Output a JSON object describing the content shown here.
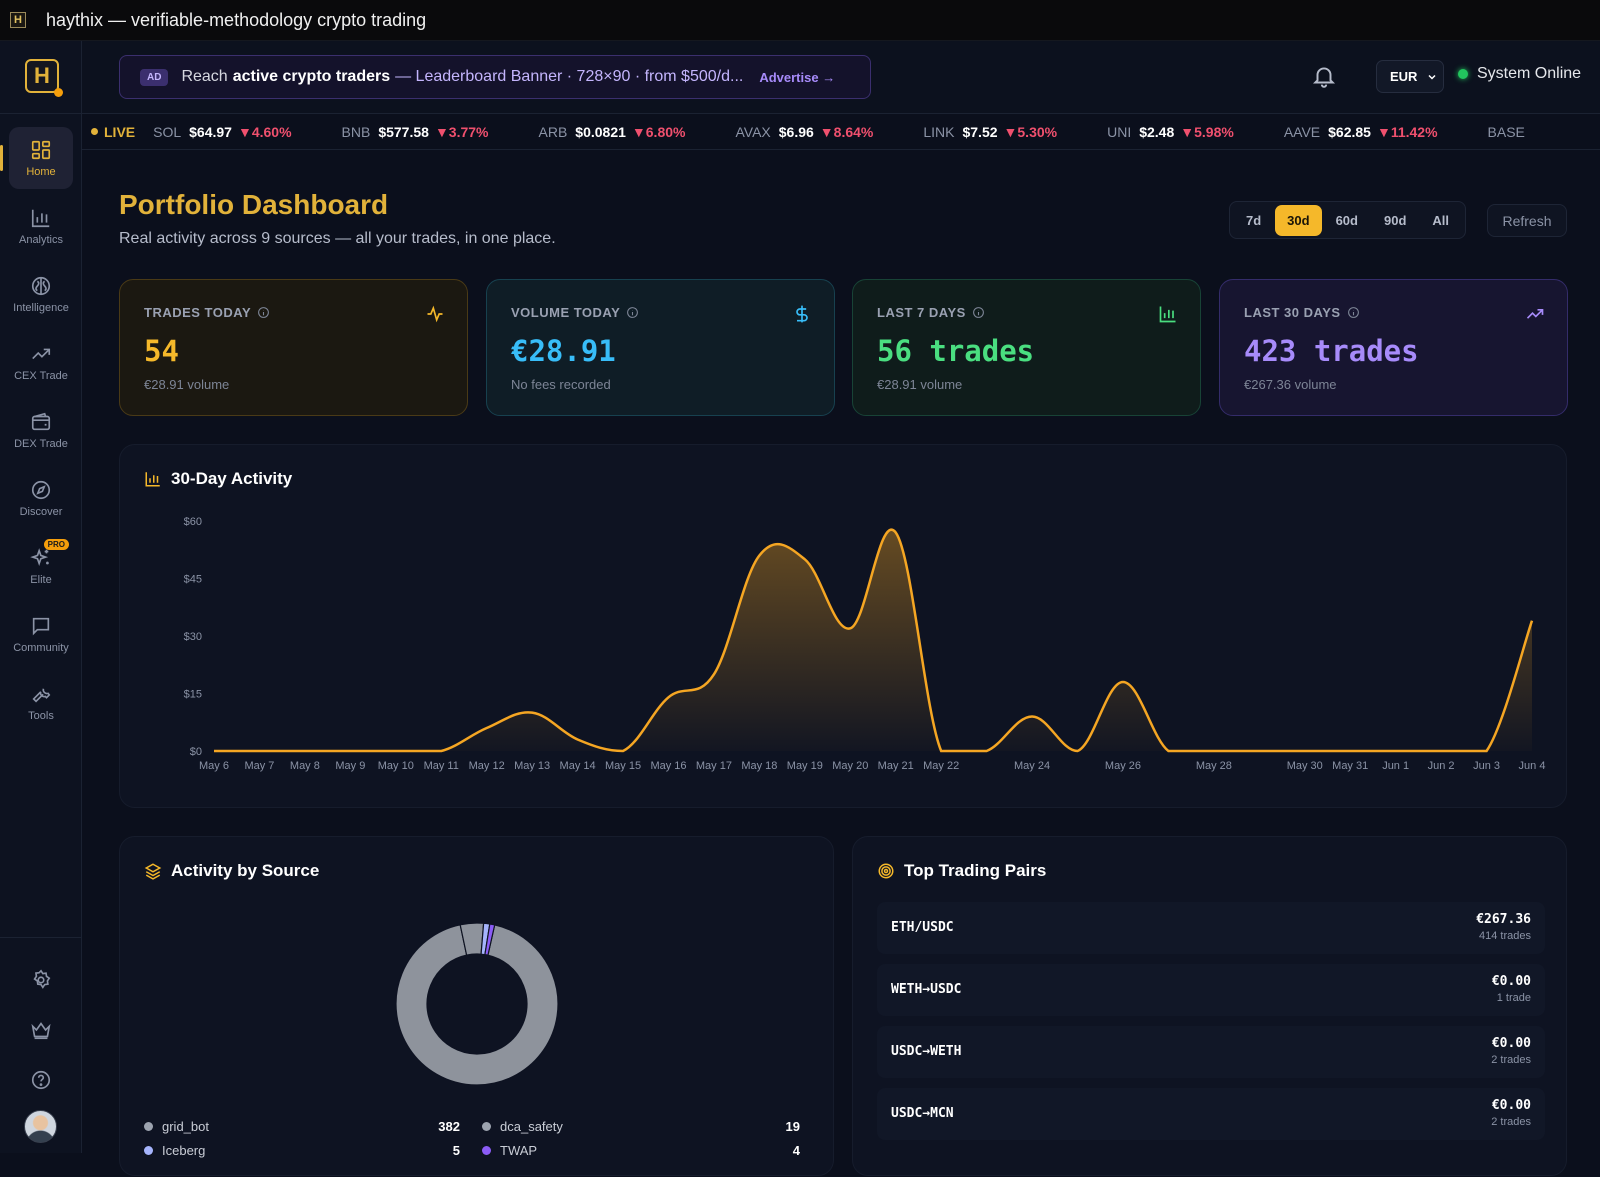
{
  "window": {
    "app_icon": "H",
    "title": "haythix — verifiable-methodology crypto trading"
  },
  "sidebar": {
    "logo": "H",
    "items": [
      {
        "label": "Home",
        "icon": "grid-icon",
        "active": true
      },
      {
        "label": "Analytics",
        "icon": "bar-chart-icon"
      },
      {
        "label": "Intelligence",
        "icon": "brain-icon"
      },
      {
        "label": "CEX Trade",
        "icon": "trending-up-icon"
      },
      {
        "label": "DEX Trade",
        "icon": "wallet-icon"
      },
      {
        "label": "Discover",
        "icon": "compass-icon"
      },
      {
        "label": "Elite",
        "icon": "sparkles-icon",
        "badge": "PRO"
      },
      {
        "label": "Community",
        "icon": "message-icon"
      },
      {
        "label": "Tools",
        "icon": "wrench-icon"
      }
    ],
    "bottom_icons": [
      "gear-icon",
      "crown-icon",
      "help-icon"
    ]
  },
  "header": {
    "ad": {
      "tag": "AD",
      "pre": "Reach",
      "strong": "active crypto traders",
      "rest": "— Leaderboard Banner · 728×90 · from $500/d...",
      "cta": "Advertise →"
    },
    "currency": "EUR",
    "status": "System Online"
  },
  "ticker": {
    "live_label": "LIVE",
    "items": [
      {
        "symbol": "SOL",
        "price": "$64.97",
        "change": "▼4.60%"
      },
      {
        "symbol": "BNB",
        "price": "$577.58",
        "change": "▼3.77%"
      },
      {
        "symbol": "ARB",
        "price": "$0.0821",
        "change": "▼6.80%"
      },
      {
        "symbol": "AVAX",
        "price": "$6.96",
        "change": "▼8.64%"
      },
      {
        "symbol": "LINK",
        "price": "$7.52",
        "change": "▼5.30%"
      },
      {
        "symbol": "UNI",
        "price": "$2.48",
        "change": "▼5.98%"
      },
      {
        "symbol": "AAVE",
        "price": "$62.85",
        "change": "▼11.42%"
      },
      {
        "symbol": "BASE",
        "price": "",
        "change": ""
      }
    ]
  },
  "main": {
    "title": "Portfolio Dashboard",
    "subtitle": "Real activity across 9 sources — all your trades, in one place.",
    "ranges": [
      "7d",
      "30d",
      "60d",
      "90d",
      "All"
    ],
    "active_range": "30d",
    "refresh": "Refresh"
  },
  "cards": [
    {
      "title": "TRADES TODAY",
      "value": "54",
      "sub": "€28.91 volume",
      "icon": "pulse-icon"
    },
    {
      "title": "VOLUME TODAY",
      "value": "€28.91",
      "sub": "No fees recorded",
      "icon": "dollar-icon"
    },
    {
      "title": "LAST 7 DAYS",
      "value": "56 trades",
      "sub": "€28.91 volume",
      "icon": "bar-chart-icon"
    },
    {
      "title": "LAST 30 DAYS",
      "value": "423 trades",
      "sub": "€267.36 volume",
      "icon": "trend-up-icon"
    }
  ],
  "activity": {
    "title": "30-Day Activity",
    "icon": "bar-chart-icon"
  },
  "source": {
    "title": "Activity by Source",
    "icon": "layers-icon",
    "legend": [
      {
        "name": "grid_bot",
        "count": "382",
        "color": "#9ca3af"
      },
      {
        "name": "dca_safety",
        "count": "19",
        "color": "#9ca3af"
      },
      {
        "name": "Iceberg",
        "count": "5",
        "color": "#a5b4fc"
      },
      {
        "name": "TWAP",
        "count": "4",
        "color": "#8b5cf6"
      }
    ]
  },
  "pairs": {
    "title": "Top Trading Pairs",
    "icon": "target-icon",
    "rows": [
      {
        "pair": "ETH/USDC",
        "value": "€267.36",
        "count": "414 trades"
      },
      {
        "pair": "WETH→USDC",
        "value": "€0.00",
        "count": "1 trade"
      },
      {
        "pair": "USDC→WETH",
        "value": "€0.00",
        "count": "2 trades"
      },
      {
        "pair": "USDC→MCN",
        "value": "€0.00",
        "count": "2 trades"
      }
    ]
  },
  "chart_data": {
    "type": "area",
    "title": "30-Day Activity",
    "xlabel": "",
    "ylabel": "",
    "ylim": [
      0,
      60
    ],
    "y_ticks": [
      "$0",
      "$15",
      "$30",
      "$45",
      "$60"
    ],
    "x_tick_labels": [
      "May 6",
      "May 7",
      "May 8",
      "May 9",
      "May 10",
      "May 11",
      "May 12",
      "May 13",
      "May 14",
      "May 15",
      "May 16",
      "May 17",
      "May 18",
      "May 19",
      "May 20",
      "May 21",
      "May 22",
      "May 24",
      "May 26",
      "May 28",
      "May 30",
      "May 31",
      "Jun 1",
      "Jun 2",
      "Jun 3",
      "Jun 4"
    ],
    "x": [
      "May 6",
      "May 7",
      "May 8",
      "May 9",
      "May 10",
      "May 11",
      "May 12",
      "May 13",
      "May 14",
      "May 15",
      "May 16",
      "May 17",
      "May 18",
      "May 19",
      "May 20",
      "May 21",
      "May 22",
      "May 23",
      "May 24",
      "May 25",
      "May 26",
      "May 27",
      "May 28",
      "May 29",
      "May 30",
      "May 31",
      "Jun 1",
      "Jun 2",
      "Jun 3",
      "Jun 4"
    ],
    "series": [
      {
        "values": [
          0,
          0,
          0,
          0,
          0,
          0,
          6,
          10,
          3,
          0,
          14,
          20,
          51,
          50,
          32,
          57,
          0,
          0,
          9,
          0,
          18,
          0,
          0,
          0,
          0,
          0,
          0,
          0,
          0,
          34
        ],
        "color": "#f5a623"
      }
    ],
    "grid": false,
    "legend": "none"
  }
}
